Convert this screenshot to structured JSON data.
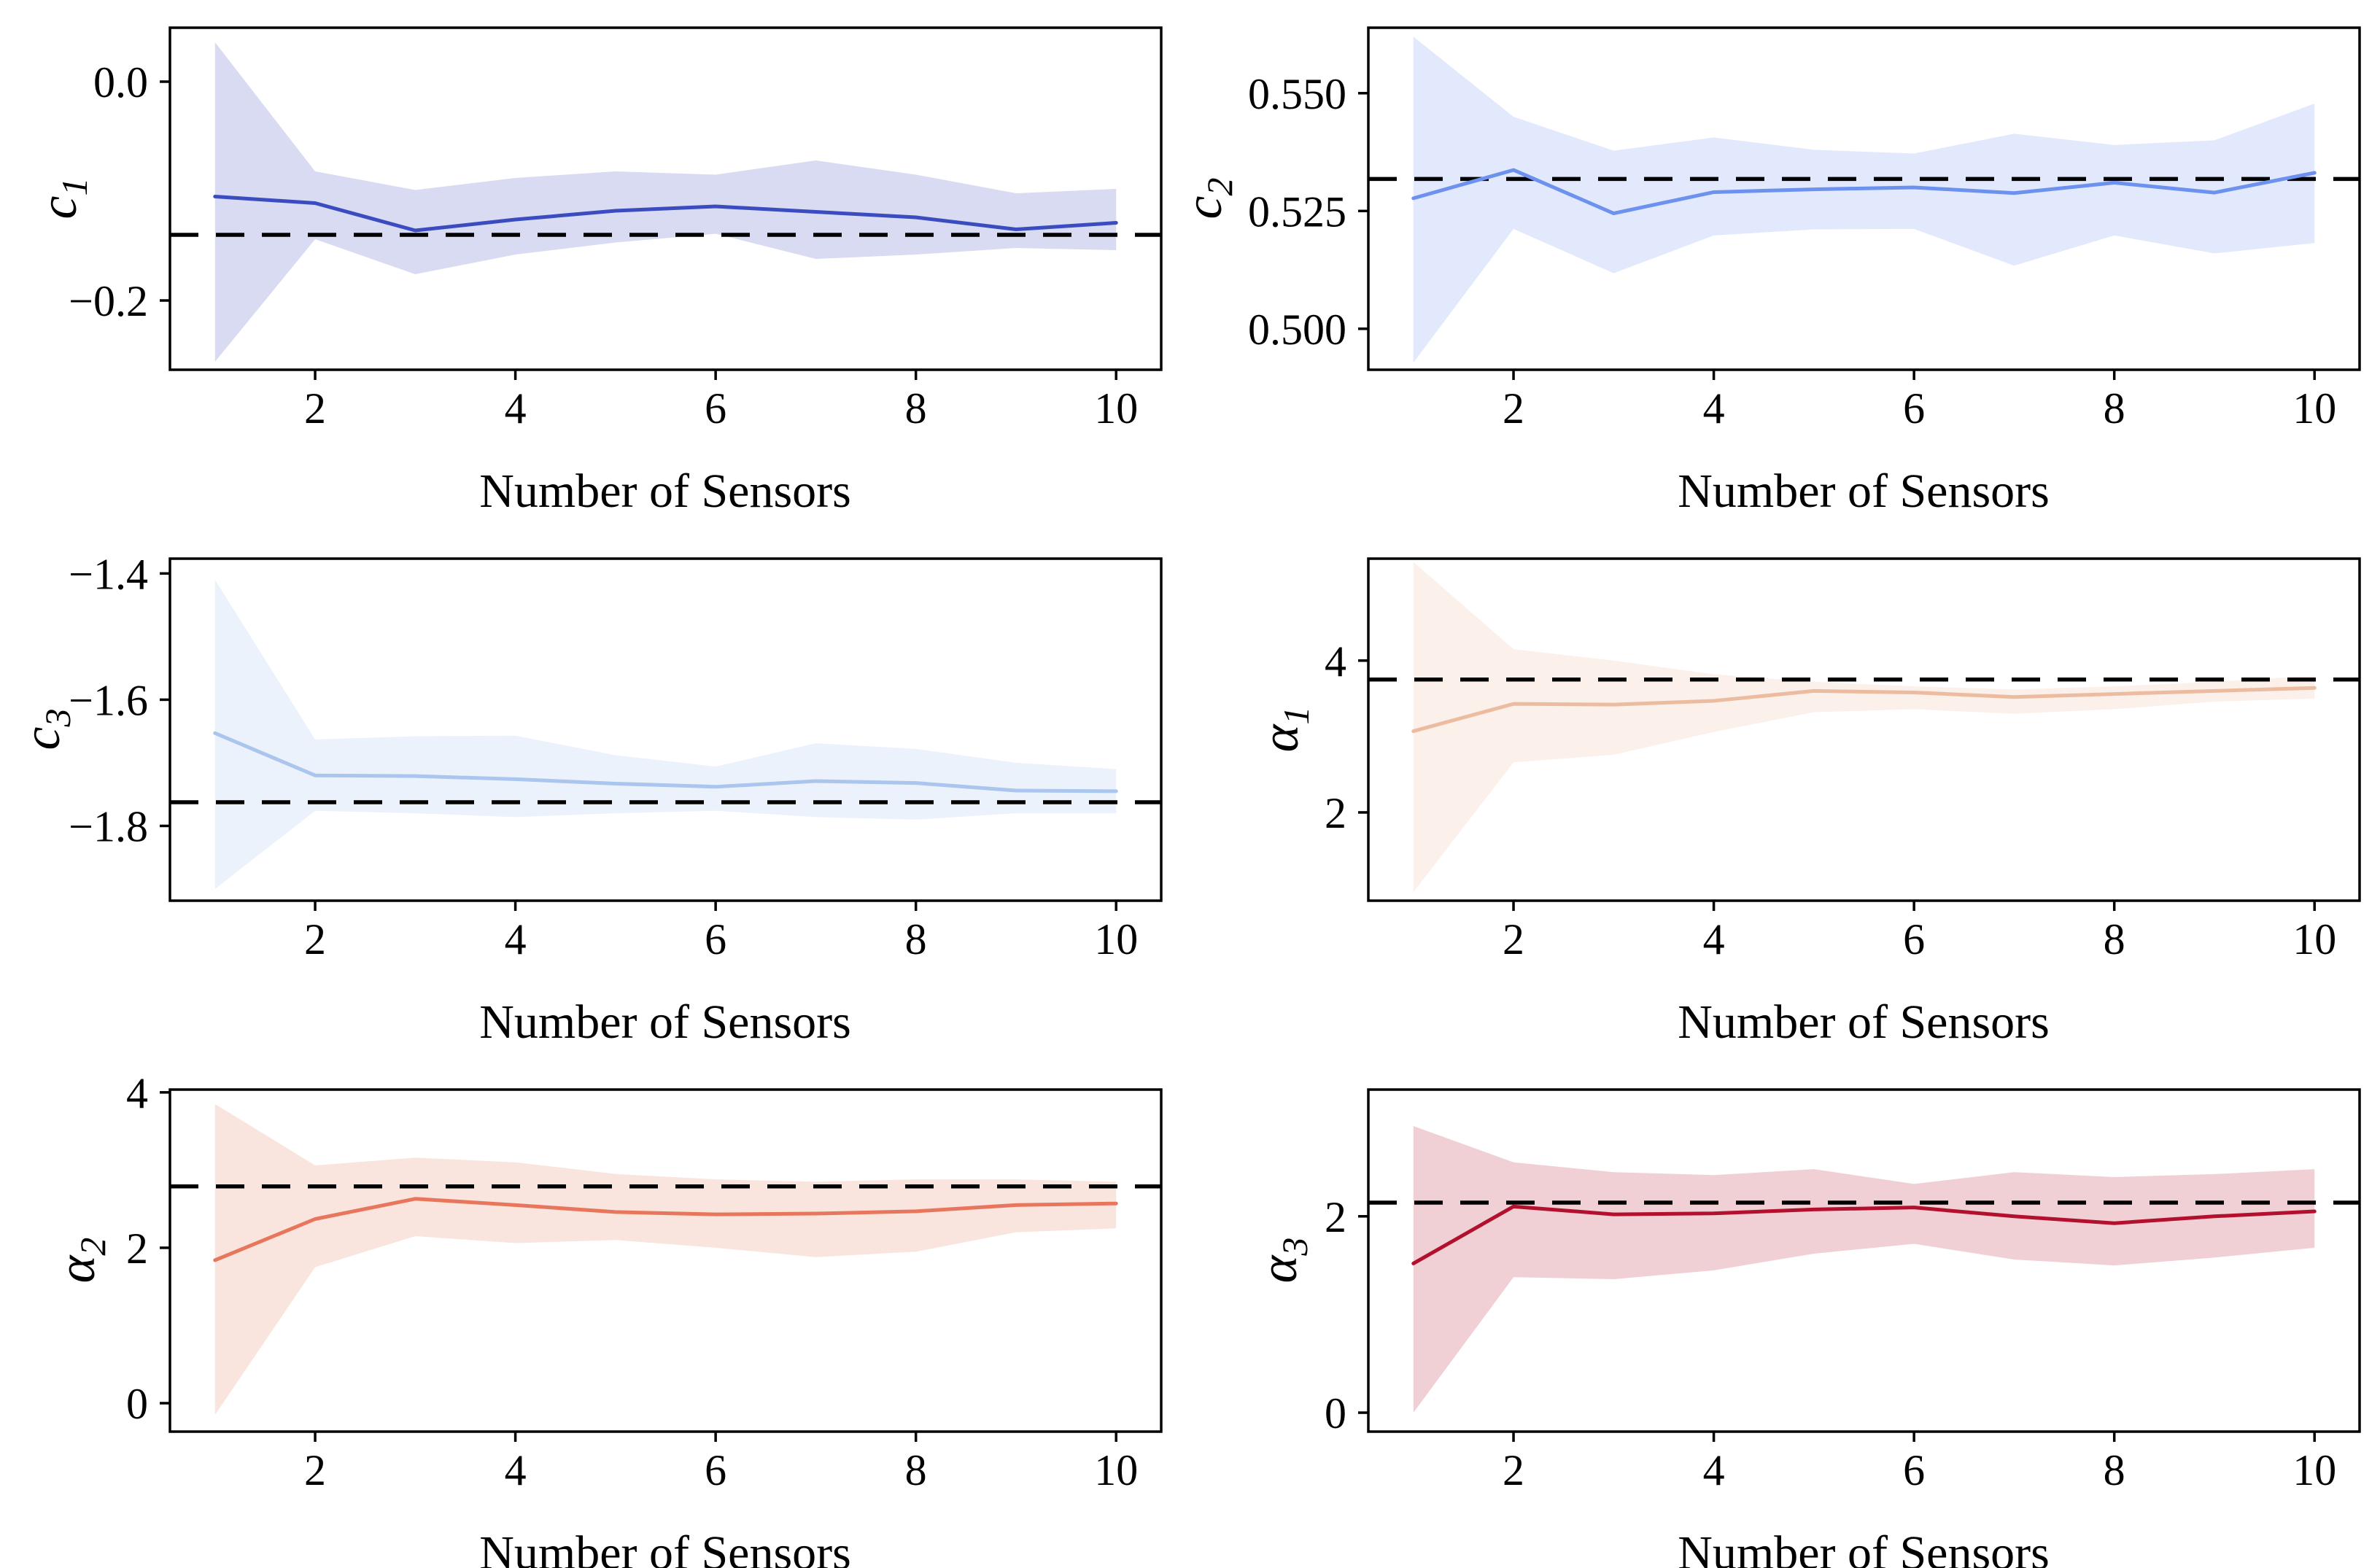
{
  "figure": {
    "background": "#ffffff",
    "xlabel": "Number of Sensors",
    "dashed_line_meaning": "true-value",
    "dashed_line_color": "#000000"
  },
  "chart_data": [
    {
      "id": "c1",
      "type": "line",
      "ylabel_base": "c",
      "ylabel_sub": "1",
      "xlabel": "Number of Sensors",
      "x": [
        1,
        2,
        3,
        4,
        5,
        6,
        7,
        8,
        9,
        10
      ],
      "xlim": [
        0.55,
        10.45
      ],
      "xticks": [
        2,
        4,
        6,
        8,
        10
      ],
      "ylim": [
        -0.2633,
        0.0493
      ],
      "yticks": [
        {
          "v": 0.0,
          "label": "0.0"
        },
        {
          "v": -0.2,
          "label": "−0.2"
        }
      ],
      "true_value": -0.14,
      "line_color": "#3b4cc0",
      "band_color": "#3b4cc0",
      "band_opacity": 0.2,
      "series": [
        {
          "name": "mean",
          "values": [
            -0.105,
            -0.111,
            -0.136,
            -0.126,
            -0.118,
            -0.114,
            -0.119,
            -0.124,
            -0.135,
            -0.129
          ]
        },
        {
          "name": "band-upper",
          "values": [
            0.036,
            -0.082,
            -0.099,
            -0.088,
            -0.082,
            -0.085,
            -0.072,
            -0.085,
            -0.102,
            -0.098
          ]
        },
        {
          "name": "band-lower",
          "values": [
            -0.256,
            -0.144,
            -0.176,
            -0.158,
            -0.147,
            -0.139,
            -0.162,
            -0.158,
            -0.152,
            -0.154
          ]
        }
      ]
    },
    {
      "id": "c2",
      "type": "line",
      "ylabel_base": "c",
      "ylabel_sub": "2",
      "xlabel": "Number of Sensors",
      "x": [
        1,
        2,
        3,
        4,
        5,
        6,
        7,
        8,
        9,
        10
      ],
      "xlim": [
        0.55,
        10.45
      ],
      "xticks": [
        2,
        4,
        6,
        8,
        10
      ],
      "ylim": [
        0.4913,
        0.5639
      ],
      "yticks": [
        {
          "v": 0.55,
          "label": "0.550"
        },
        {
          "v": 0.525,
          "label": "0.525"
        },
        {
          "v": 0.5,
          "label": "0.500"
        }
      ],
      "true_value": 0.5318,
      "line_color": "#6c91ef",
      "band_color": "#6c91ef",
      "band_opacity": 0.2,
      "series": [
        {
          "name": "mean",
          "values": [
            0.5277,
            0.5337,
            0.5245,
            0.529,
            0.5296,
            0.53,
            0.5288,
            0.531,
            0.5289,
            0.5331
          ]
        },
        {
          "name": "band-upper",
          "values": [
            0.562,
            0.545,
            0.5378,
            0.5406,
            0.538,
            0.5372,
            0.5414,
            0.539,
            0.54,
            0.5478
          ]
        },
        {
          "name": "band-lower",
          "values": [
            0.4928,
            0.5212,
            0.5118,
            0.5198,
            0.5211,
            0.5212,
            0.5134,
            0.5198,
            0.516,
            0.5182
          ]
        }
      ]
    },
    {
      "id": "c3",
      "type": "line",
      "ylabel_base": "c",
      "ylabel_sub": "3",
      "xlabel": "Number of Sensors",
      "x": [
        1,
        2,
        3,
        4,
        5,
        6,
        7,
        8,
        9,
        10
      ],
      "xlim": [
        0.55,
        10.45
      ],
      "xticks": [
        2,
        4,
        6,
        8,
        10
      ],
      "ylim": [
        -1.9185,
        -1.3765
      ],
      "yticks": [
        {
          "v": -1.4,
          "label": "−1.4"
        },
        {
          "v": -1.6,
          "label": "−1.6"
        },
        {
          "v": -1.8,
          "label": "−1.8"
        }
      ],
      "true_value": -1.7625,
      "line_color": "#aac5ee",
      "band_color": "#aac5ee",
      "band_opacity": 0.22,
      "series": [
        {
          "name": "mean",
          "values": [
            -1.653,
            -1.72,
            -1.721,
            -1.726,
            -1.733,
            -1.738,
            -1.729,
            -1.732,
            -1.744,
            -1.745
          ]
        },
        {
          "name": "band-upper",
          "values": [
            -1.41,
            -1.663,
            -1.658,
            -1.657,
            -1.688,
            -1.706,
            -1.669,
            -1.678,
            -1.7,
            -1.71
          ]
        },
        {
          "name": "band-lower",
          "values": [
            -1.9,
            -1.776,
            -1.78,
            -1.786,
            -1.78,
            -1.776,
            -1.786,
            -1.79,
            -1.78,
            -1.78
          ]
        }
      ]
    },
    {
      "id": "alpha1",
      "type": "line",
      "ylabel_base": "α",
      "ylabel_sub": "1",
      "xlabel": "Number of Sensors",
      "x": [
        1,
        2,
        3,
        4,
        5,
        6,
        7,
        8,
        9,
        10
      ],
      "xlim": [
        0.55,
        10.45
      ],
      "xticks": [
        2,
        4,
        6,
        8,
        10
      ],
      "ylim": [
        0.837,
        5.343
      ],
      "yticks": [
        {
          "v": 4,
          "label": "4"
        },
        {
          "v": 2,
          "label": "2"
        }
      ],
      "true_value": 3.75,
      "line_color": "#ecbca1",
      "band_color": "#ecbca1",
      "band_opacity": 0.22,
      "series": [
        {
          "name": "mean",
          "values": [
            3.07,
            3.43,
            3.42,
            3.47,
            3.6,
            3.58,
            3.52,
            3.56,
            3.6,
            3.64
          ]
        },
        {
          "name": "band-upper",
          "values": [
            5.3,
            4.15,
            4.0,
            3.82,
            3.72,
            3.66,
            3.62,
            3.66,
            3.72,
            3.8
          ]
        },
        {
          "name": "band-lower",
          "values": [
            0.95,
            2.66,
            2.76,
            3.06,
            3.32,
            3.36,
            3.3,
            3.36,
            3.46,
            3.5
          ]
        }
      ]
    },
    {
      "id": "alpha2",
      "type": "line",
      "ylabel_base": "α",
      "ylabel_sub": "2",
      "xlabel": "Number of Sensors",
      "x": [
        1,
        2,
        3,
        4,
        5,
        6,
        7,
        8,
        9,
        10
      ],
      "xlim": [
        0.55,
        10.45
      ],
      "xticks": [
        2,
        4,
        6,
        8,
        10
      ],
      "ylim": [
        -0.366,
        4.036
      ],
      "yticks": [
        {
          "v": 4,
          "label": "4"
        },
        {
          "v": 2,
          "label": "2"
        },
        {
          "v": 0,
          "label": "0"
        }
      ],
      "true_value": 2.79,
      "line_color": "#e8765c",
      "band_color": "#e8765c",
      "band_opacity": 0.2,
      "series": [
        {
          "name": "mean",
          "values": [
            1.84,
            2.37,
            2.63,
            2.55,
            2.46,
            2.43,
            2.44,
            2.47,
            2.55,
            2.57
          ]
        },
        {
          "name": "band-upper",
          "values": [
            3.85,
            3.06,
            3.16,
            3.1,
            2.95,
            2.88,
            2.85,
            2.88,
            2.88,
            2.85
          ]
        },
        {
          "name": "band-lower",
          "values": [
            -0.15,
            1.75,
            2.15,
            2.06,
            2.1,
            2.0,
            1.88,
            1.95,
            2.2,
            2.25
          ]
        }
      ]
    },
    {
      "id": "alpha3",
      "type": "line",
      "ylabel_base": "α",
      "ylabel_sub": "3",
      "xlabel": "Number of Sensors",
      "x": [
        1,
        2,
        3,
        4,
        5,
        6,
        7,
        8,
        9,
        10
      ],
      "xlim": [
        0.55,
        10.45
      ],
      "xticks": [
        2,
        4,
        6,
        8,
        10
      ],
      "ylim": [
        -0.193,
        3.291
      ],
      "yticks": [
        {
          "v": 2,
          "label": "2"
        },
        {
          "v": 0,
          "label": "0"
        }
      ],
      "true_value": 2.14,
      "line_color": "#b2102c",
      "band_color": "#b2102c",
      "band_opacity": 0.2,
      "series": [
        {
          "name": "mean",
          "values": [
            1.52,
            2.1,
            2.02,
            2.03,
            2.07,
            2.09,
            2.0,
            1.93,
            2.0,
            2.05
          ]
        },
        {
          "name": "band-upper",
          "values": [
            2.92,
            2.55,
            2.45,
            2.42,
            2.48,
            2.33,
            2.45,
            2.4,
            2.43,
            2.48
          ]
        },
        {
          "name": "band-lower",
          "values": [
            0.0,
            1.38,
            1.36,
            1.45,
            1.62,
            1.72,
            1.56,
            1.5,
            1.58,
            1.68
          ]
        }
      ]
    }
  ]
}
